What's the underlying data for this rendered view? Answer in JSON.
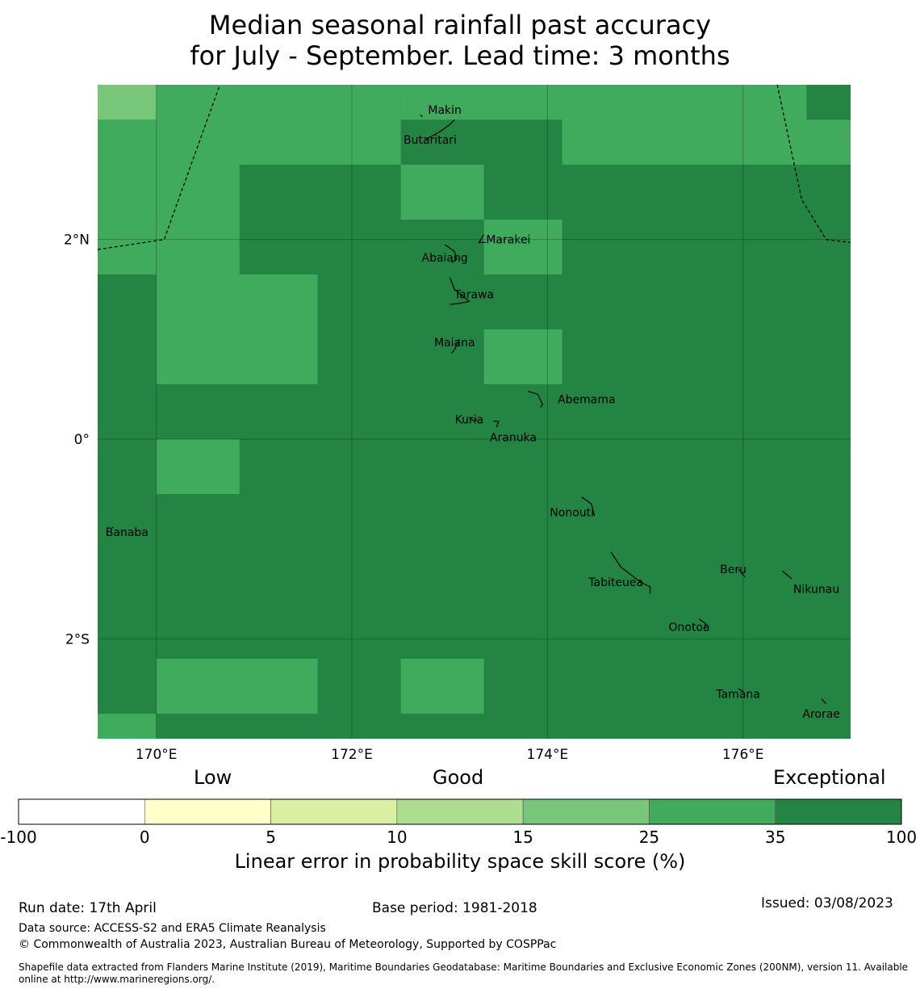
{
  "title": {
    "line1": "Median seasonal rainfall past accuracy",
    "line2": "for July - September. Lead time: 3 months"
  },
  "map": {
    "lon_range": [
      169.4,
      177.1
    ],
    "lat_range": [
      -3.0,
      3.55
    ],
    "lon_ticks": [
      {
        "value": 170,
        "label": "170°E"
      },
      {
        "value": 172,
        "label": "172°E"
      },
      {
        "value": 174,
        "label": "174°E"
      },
      {
        "value": 176,
        "label": "176°E"
      }
    ],
    "lat_ticks": [
      {
        "value": 2,
        "label": "2°N"
      },
      {
        "value": 0,
        "label": "0°"
      },
      {
        "value": -2,
        "label": "2°S"
      }
    ],
    "grid": true,
    "default_category": "35-100",
    "cells": [
      {
        "lon": [
          169.4,
          170.0
        ],
        "lat": [
          3.2,
          3.55
        ],
        "category": "15-25"
      },
      {
        "lon": [
          170.0,
          172.5
        ],
        "lat": [
          2.75,
          3.55
        ],
        "category": "25-35"
      },
      {
        "lon": [
          169.4,
          170.0
        ],
        "lat": [
          1.65,
          3.2
        ],
        "category": "25-35"
      },
      {
        "lon": [
          170.0,
          170.85
        ],
        "lat": [
          1.65,
          2.75
        ],
        "category": "25-35"
      },
      {
        "lon": [
          172.5,
          174.15
        ],
        "lat": [
          3.2,
          3.55
        ],
        "category": "25-35"
      },
      {
        "lon": [
          174.15,
          176.65
        ],
        "lat": [
          2.75,
          3.55
        ],
        "category": "25-35"
      },
      {
        "lon": [
          176.65,
          177.1
        ],
        "lat": [
          2.75,
          3.2
        ],
        "category": "25-35"
      },
      {
        "lon": [
          172.5,
          173.35
        ],
        "lat": [
          2.2,
          2.75
        ],
        "category": "25-35"
      },
      {
        "lon": [
          173.35,
          174.15
        ],
        "lat": [
          1.65,
          2.2
        ],
        "category": "25-35"
      },
      {
        "lon": [
          170.0,
          171.65
        ],
        "lat": [
          0.55,
          1.65
        ],
        "category": "25-35"
      },
      {
        "lon": [
          173.35,
          174.15
        ],
        "lat": [
          0.55,
          1.1
        ],
        "category": "25-35"
      },
      {
        "lon": [
          170.0,
          170.85
        ],
        "lat": [
          -0.55,
          0.0
        ],
        "category": "25-35"
      },
      {
        "lon": [
          170.0,
          171.65
        ],
        "lat": [
          -2.75,
          -2.2
        ],
        "category": "25-35"
      },
      {
        "lon": [
          172.5,
          173.35
        ],
        "lat": [
          -2.75,
          -2.2
        ],
        "category": "25-35"
      },
      {
        "lon": [
          169.4,
          170.0
        ],
        "lat": [
          -3.0,
          -2.75
        ],
        "category": "25-35"
      }
    ],
    "boundaries": [
      [
        [
          169.4,
          1.9
        ],
        [
          170.08,
          2.0
        ],
        [
          170.65,
          3.55
        ]
      ],
      [
        [
          176.35,
          3.55
        ],
        [
          176.6,
          2.4
        ],
        [
          176.85,
          2.0
        ],
        [
          177.1,
          1.97
        ]
      ]
    ],
    "places": [
      {
        "name": "Makin",
        "lon": 172.95,
        "lat": 3.3
      },
      {
        "name": "Butaritari",
        "lon": 172.8,
        "lat": 3.0
      },
      {
        "name": "Marakei",
        "lon": 173.6,
        "lat": 2.0
      },
      {
        "name": "Abaiang",
        "lon": 172.95,
        "lat": 1.82
      },
      {
        "name": "Tarawa",
        "lon": 173.25,
        "lat": 1.45
      },
      {
        "name": "Maiana",
        "lon": 173.05,
        "lat": 0.97
      },
      {
        "name": "Abemama",
        "lon": 174.4,
        "lat": 0.4
      },
      {
        "name": "Kuria",
        "lon": 173.2,
        "lat": 0.2
      },
      {
        "name": "Aranuka",
        "lon": 173.65,
        "lat": 0.02
      },
      {
        "name": "Banaba",
        "lon": 169.7,
        "lat": -0.93
      },
      {
        "name": "Nonouti",
        "lon": 174.25,
        "lat": -0.73
      },
      {
        "name": "Tabiteuea",
        "lon": 174.7,
        "lat": -1.43
      },
      {
        "name": "Beru",
        "lon": 175.9,
        "lat": -1.3
      },
      {
        "name": "Nikunau",
        "lon": 176.75,
        "lat": -1.5
      },
      {
        "name": "Onotoa",
        "lon": 175.45,
        "lat": -1.88
      },
      {
        "name": "Tamana",
        "lon": 175.95,
        "lat": -2.55
      },
      {
        "name": "Arorae",
        "lon": 176.8,
        "lat": -2.75
      }
    ],
    "islands": [
      [
        [
          172.75,
          3.0
        ],
        [
          172.9,
          3.08
        ],
        [
          173.0,
          3.15
        ],
        [
          173.05,
          3.2
        ]
      ],
      [
        [
          172.7,
          3.25
        ],
        [
          172.72,
          3.23
        ]
      ],
      [
        [
          173.35,
          2.05
        ],
        [
          173.3,
          1.97
        ],
        [
          173.37,
          1.97
        ]
      ],
      [
        [
          172.95,
          1.95
        ],
        [
          173.05,
          1.88
        ],
        [
          173.07,
          1.8
        ],
        [
          173.02,
          1.77
        ]
      ],
      [
        [
          173.0,
          1.62
        ],
        [
          173.05,
          1.5
        ],
        [
          173.15,
          1.42
        ],
        [
          173.2,
          1.38
        ],
        [
          173.1,
          1.36
        ],
        [
          173.0,
          1.35
        ]
      ],
      [
        [
          173.1,
          1.0
        ],
        [
          173.05,
          0.9
        ],
        [
          173.02,
          0.86
        ]
      ],
      [
        [
          173.8,
          0.48
        ],
        [
          173.9,
          0.45
        ],
        [
          173.95,
          0.35
        ],
        [
          173.93,
          0.32
        ]
      ],
      [
        [
          173.2,
          0.22
        ],
        [
          173.25,
          0.18
        ],
        [
          173.28,
          0.2
        ]
      ],
      [
        [
          173.45,
          0.18
        ],
        [
          173.5,
          0.18
        ],
        [
          173.48,
          0.12
        ]
      ],
      [
        [
          169.55,
          -0.88
        ],
        [
          169.56,
          -0.89
        ]
      ],
      [
        [
          174.35,
          -0.58
        ],
        [
          174.45,
          -0.65
        ],
        [
          174.48,
          -0.77
        ]
      ],
      [
        [
          174.65,
          -1.13
        ],
        [
          174.75,
          -1.28
        ],
        [
          174.95,
          -1.43
        ],
        [
          175.05,
          -1.48
        ],
        [
          175.05,
          -1.55
        ]
      ],
      [
        [
          175.95,
          -1.3
        ],
        [
          176.02,
          -1.38
        ]
      ],
      [
        [
          176.4,
          -1.32
        ],
        [
          176.5,
          -1.4
        ]
      ],
      [
        [
          175.55,
          -1.8
        ],
        [
          175.62,
          -1.85
        ],
        [
          175.6,
          -1.9
        ]
      ],
      [
        [
          175.95,
          -2.5
        ],
        [
          176.0,
          -2.52
        ]
      ],
      [
        [
          176.8,
          -2.6
        ],
        [
          176.85,
          -2.65
        ]
      ]
    ]
  },
  "colorbar": {
    "header_low": "Low",
    "header_good": "Good",
    "header_exceptional": "Exceptional",
    "segments": [
      {
        "from": "-100",
        "to": "0",
        "color": "#ffffff"
      },
      {
        "from": "0",
        "to": "5",
        "color": "#ffffcc"
      },
      {
        "from": "5",
        "to": "10",
        "color": "#d9f0a3"
      },
      {
        "from": "10",
        "to": "15",
        "color": "#addd8e"
      },
      {
        "from": "15",
        "to": "25",
        "color": "#78c679"
      },
      {
        "from": "25",
        "to": "35",
        "color": "#41ab5d"
      },
      {
        "from": "35",
        "to": "100",
        "color": "#238443"
      }
    ],
    "tick_labels": [
      "-100",
      "0",
      "5",
      "10",
      "15",
      "25",
      "35",
      "100"
    ],
    "axis_label": "Linear error in probability space skill score (%)"
  },
  "category_colors": {
    "15-25": "#78c679",
    "25-35": "#41ab5d",
    "35-100": "#238443"
  },
  "footer": {
    "run_date": "Run date: 17th April",
    "base_period": "Base period: 1981-2018",
    "issued": "Issued: 03/08/2023",
    "data_source": "Data source: ACCESS-S2 and ERA5 Climate Reanalysis",
    "copyright": "© Commonwealth of Australia 2023, Australian Bureau of Meteorology, Supported by COSPPac",
    "shapefile": "Shapefile data extracted from Flanders Marine Institute (2019), Maritime Boundaries Geodatabase: Maritime Boundaries and Exclusive Economic Zones (200NM), version 11. Available online at http://www.marineregions.org/."
  }
}
